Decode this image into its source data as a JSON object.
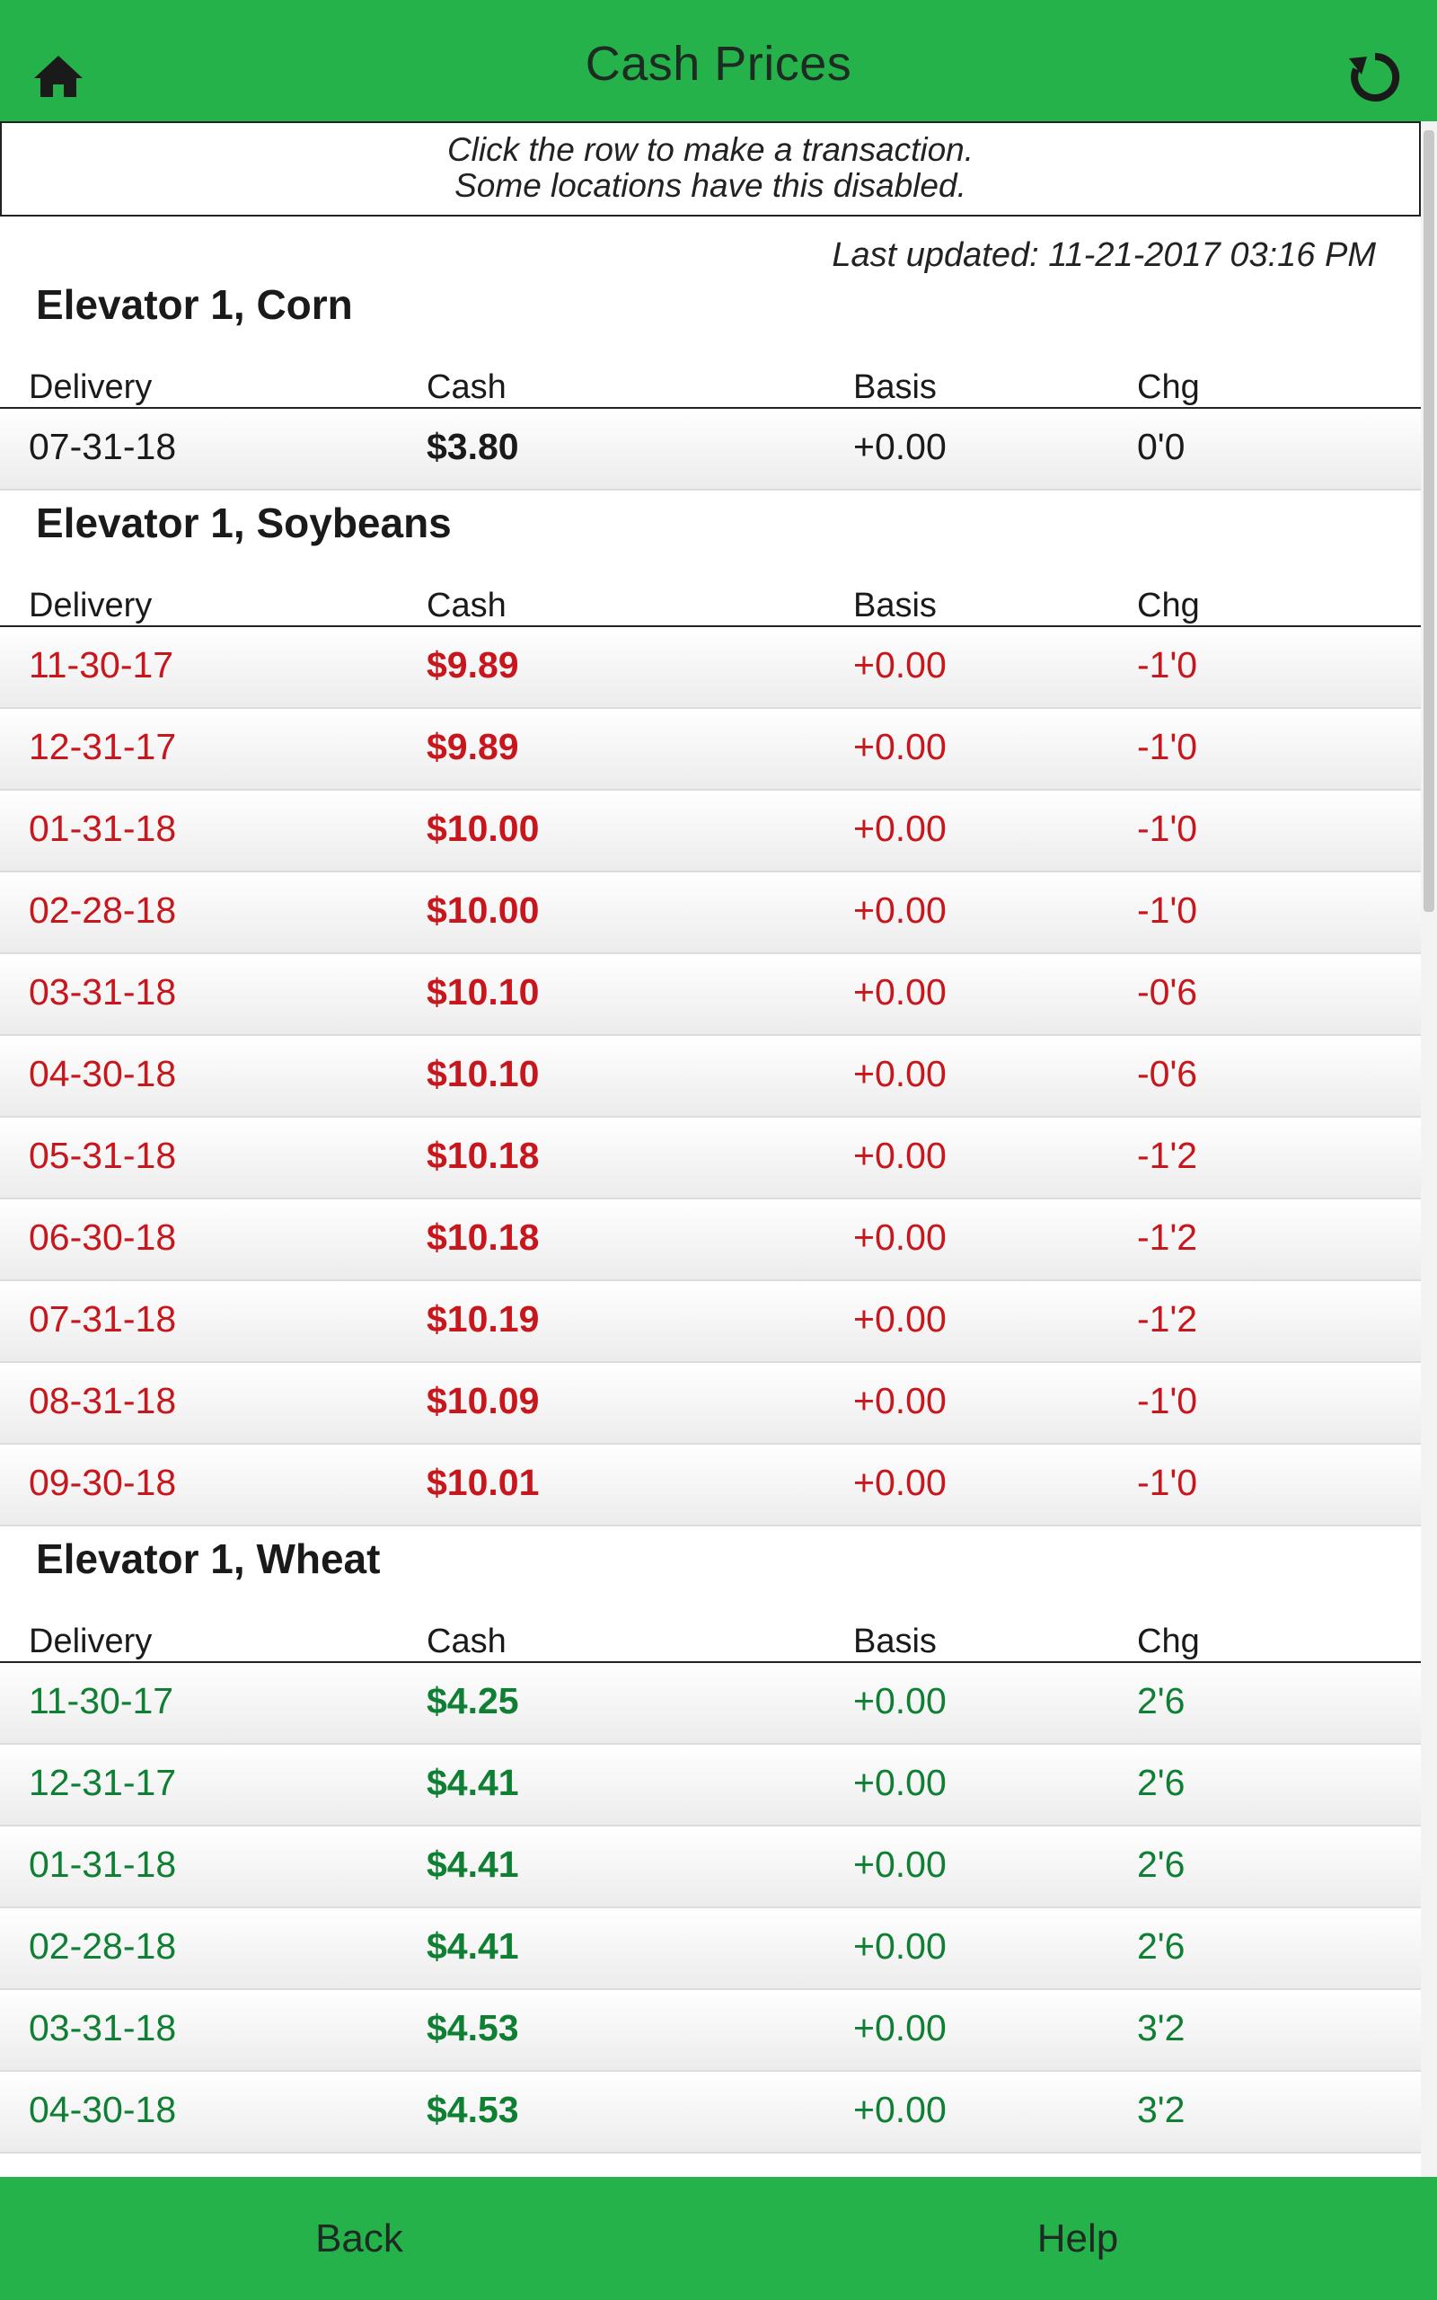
{
  "header": {
    "title": "Cash Prices"
  },
  "notice": {
    "line1": "Click the row to make a transaction.",
    "line2": "Some locations have this disabled."
  },
  "last_updated": "Last updated: 11-21-2017 03:16 PM",
  "columns": {
    "delivery": "Delivery",
    "cash": "Cash",
    "basis": "Basis",
    "chg": "Chg"
  },
  "sections": [
    {
      "title": "Elevator 1, Corn",
      "color": "black",
      "rows": [
        {
          "delivery": "07-31-18",
          "cash": "$3.80",
          "basis": "+0.00",
          "chg": "0'0"
        }
      ]
    },
    {
      "title": "Elevator 1, Soybeans",
      "color": "red",
      "rows": [
        {
          "delivery": "11-30-17",
          "cash": "$9.89",
          "basis": "+0.00",
          "chg": "-1'0"
        },
        {
          "delivery": "12-31-17",
          "cash": "$9.89",
          "basis": "+0.00",
          "chg": "-1'0"
        },
        {
          "delivery": "01-31-18",
          "cash": "$10.00",
          "basis": "+0.00",
          "chg": "-1'0"
        },
        {
          "delivery": "02-28-18",
          "cash": "$10.00",
          "basis": "+0.00",
          "chg": "-1'0"
        },
        {
          "delivery": "03-31-18",
          "cash": "$10.10",
          "basis": "+0.00",
          "chg": "-0'6"
        },
        {
          "delivery": "04-30-18",
          "cash": "$10.10",
          "basis": "+0.00",
          "chg": "-0'6"
        },
        {
          "delivery": "05-31-18",
          "cash": "$10.18",
          "basis": "+0.00",
          "chg": "-1'2"
        },
        {
          "delivery": "06-30-18",
          "cash": "$10.18",
          "basis": "+0.00",
          "chg": "-1'2"
        },
        {
          "delivery": "07-31-18",
          "cash": "$10.19",
          "basis": "+0.00",
          "chg": "-1'2"
        },
        {
          "delivery": "08-31-18",
          "cash": "$10.09",
          "basis": "+0.00",
          "chg": "-1'0"
        },
        {
          "delivery": "09-30-18",
          "cash": "$10.01",
          "basis": "+0.00",
          "chg": "-1'0"
        }
      ]
    },
    {
      "title": "Elevator 1, Wheat",
      "color": "green",
      "rows": [
        {
          "delivery": "11-30-17",
          "cash": "$4.25",
          "basis": "+0.00",
          "chg": "2'6"
        },
        {
          "delivery": "12-31-17",
          "cash": "$4.41",
          "basis": "+0.00",
          "chg": "2'6"
        },
        {
          "delivery": "01-31-18",
          "cash": "$4.41",
          "basis": "+0.00",
          "chg": "2'6"
        },
        {
          "delivery": "02-28-18",
          "cash": "$4.41",
          "basis": "+0.00",
          "chg": "2'6"
        },
        {
          "delivery": "03-31-18",
          "cash": "$4.53",
          "basis": "+0.00",
          "chg": "3'2"
        },
        {
          "delivery": "04-30-18",
          "cash": "$4.53",
          "basis": "+0.00",
          "chg": "3'2"
        }
      ]
    }
  ],
  "footer": {
    "back_label": "Back",
    "help_label": "Help"
  },
  "icons": {
    "home": "home-icon",
    "refresh": "refresh-icon"
  },
  "colors": {
    "bar": "#25b24b",
    "down": "#c8161d",
    "up": "#0f7f33",
    "neutral": "#1a1a1a"
  }
}
